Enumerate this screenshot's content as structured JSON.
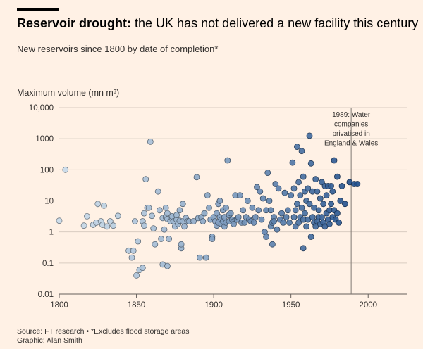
{
  "header": {
    "title_bold": "Reservoir drought:",
    "title_rest": " the UK has not delivered a new facility this century",
    "subtitle": "New reservoirs since 1800 by date of completion*"
  },
  "footer": {
    "source": "Source: FT research • *Excludes flood storage areas",
    "graphic": "Graphic: Alan Smith"
  },
  "colors": {
    "background": "#fff1e5",
    "point_light": "#c9dbea",
    "point_dark": "#1d4c8a",
    "grid": "#d9ccc1"
  },
  "chart_data": {
    "type": "scatter",
    "title": "Reservoir drought: the UK has not delivered a new facility this century",
    "subtitle": "New reservoirs since 1800 by date of completion*",
    "ylabel": "Maximum volume (mn m³)",
    "xlabel": "",
    "y_scale": "log",
    "xlim": [
      1800,
      2025
    ],
    "ylim": [
      0.01,
      10000
    ],
    "x_ticks": [
      1800,
      1850,
      1900,
      1950,
      2000
    ],
    "x_tick_labels": [
      "1800",
      "1850",
      "1900",
      "1950",
      "2000"
    ],
    "y_ticks": [
      0.01,
      0.1,
      1,
      10,
      100,
      1000,
      10000
    ],
    "y_tick_labels": [
      "0.01",
      "0.1",
      "1",
      "10",
      "100",
      "1000",
      "10,000"
    ],
    "grid": "horizontal",
    "annotation": {
      "x": 1989,
      "label_lines": [
        "1989: Water",
        "companies",
        "privatised in",
        "England & Wales"
      ]
    },
    "points": [
      [
        1804,
        100
      ],
      [
        1800,
        2.3
      ],
      [
        1816,
        1.6
      ],
      [
        1818,
        3.2
      ],
      [
        1822,
        1.7
      ],
      [
        1824,
        2
      ],
      [
        1825,
        8
      ],
      [
        1827,
        2.2
      ],
      [
        1828,
        1.7
      ],
      [
        1829,
        7
      ],
      [
        1831,
        1.5
      ],
      [
        1833,
        2.2
      ],
      [
        1835,
        1.6
      ],
      [
        1838,
        3.3
      ],
      [
        1845,
        0.25
      ],
      [
        1847,
        0.15
      ],
      [
        1848,
        0.25
      ],
      [
        1849,
        2.2
      ],
      [
        1850,
        0.04
      ],
      [
        1851,
        0.5
      ],
      [
        1852,
        0.06
      ],
      [
        1854,
        0.07
      ],
      [
        1854,
        2.2
      ],
      [
        1855,
        1.6
      ],
      [
        1855,
        4
      ],
      [
        1856,
        50
      ],
      [
        1857,
        6
      ],
      [
        1858,
        6
      ],
      [
        1859,
        800
      ],
      [
        1860,
        3.3
      ],
      [
        1861,
        1.3
      ],
      [
        1862,
        0.4
      ],
      [
        1864,
        20
      ],
      [
        1865,
        5
      ],
      [
        1866,
        0.6
      ],
      [
        1867,
        2.8
      ],
      [
        1867,
        0.09
      ],
      [
        1868,
        1.2
      ],
      [
        1869,
        6
      ],
      [
        1869,
        3
      ],
      [
        1870,
        2.6
      ],
      [
        1870,
        4
      ],
      [
        1870,
        0.08
      ],
      [
        1871,
        0.6
      ],
      [
        1872,
        2.2
      ],
      [
        1873,
        2.8
      ],
      [
        1873,
        3.2
      ],
      [
        1874,
        2.2
      ],
      [
        1875,
        1.5
      ],
      [
        1876,
        2.5
      ],
      [
        1876,
        3.5
      ],
      [
        1877,
        1.8
      ],
      [
        1878,
        2.3
      ],
      [
        1878,
        5
      ],
      [
        1879,
        0.3
      ],
      [
        1879,
        0.4
      ],
      [
        1880,
        8
      ],
      [
        1880,
        2.2
      ],
      [
        1881,
        1.5
      ],
      [
        1882,
        2.8
      ],
      [
        1883,
        2.2
      ],
      [
        1884,
        2.2
      ],
      [
        1887,
        2.2
      ],
      [
        1889,
        58
      ],
      [
        1890,
        2.8
      ],
      [
        1891,
        0.15
      ],
      [
        1892,
        3
      ],
      [
        1893,
        2.2
      ],
      [
        1894,
        4
      ],
      [
        1895,
        0.15
      ],
      [
        1896,
        15
      ],
      [
        1897,
        6
      ],
      [
        1898,
        2.5
      ],
      [
        1899,
        0.7
      ],
      [
        1899,
        0.6
      ],
      [
        1900,
        3
      ],
      [
        1901,
        2.2
      ],
      [
        1902,
        4
      ],
      [
        1902,
        1.6
      ],
      [
        1903,
        8
      ],
      [
        1903,
        2
      ],
      [
        1904,
        10
      ],
      [
        1904,
        3
      ],
      [
        1905,
        2.5
      ],
      [
        1905,
        1.8
      ],
      [
        1906,
        5
      ],
      [
        1906,
        2.2
      ],
      [
        1907,
        3
      ],
      [
        1907,
        1.5
      ],
      [
        1908,
        2
      ],
      [
        1908,
        6
      ],
      [
        1909,
        200
      ],
      [
        1910,
        2.2
      ],
      [
        1910,
        3.5
      ],
      [
        1911,
        4
      ],
      [
        1912,
        2.5
      ],
      [
        1913,
        2.2
      ],
      [
        1913,
        1.8
      ],
      [
        1914,
        15
      ],
      [
        1915,
        2.5
      ],
      [
        1916,
        3
      ],
      [
        1917,
        15
      ],
      [
        1918,
        2
      ],
      [
        1919,
        5
      ],
      [
        1920,
        2
      ],
      [
        1921,
        3
      ],
      [
        1922,
        10
      ],
      [
        1923,
        2.5
      ],
      [
        1924,
        2.2
      ],
      [
        1925,
        6
      ],
      [
        1926,
        2
      ],
      [
        1927,
        3
      ],
      [
        1928,
        28
      ],
      [
        1929,
        5
      ],
      [
        1930,
        20
      ],
      [
        1931,
        2.5
      ],
      [
        1932,
        12
      ],
      [
        1933,
        1
      ],
      [
        1934,
        0.7
      ],
      [
        1934,
        5
      ],
      [
        1935,
        80
      ],
      [
        1936,
        10
      ],
      [
        1937,
        5
      ],
      [
        1937,
        1.5
      ],
      [
        1938,
        0.4
      ],
      [
        1938,
        2
      ],
      [
        1939,
        3
      ],
      [
        1939,
        2.2
      ],
      [
        1940,
        35
      ],
      [
        1941,
        1.2
      ],
      [
        1942,
        25
      ],
      [
        1943,
        2.5
      ],
      [
        1944,
        4
      ],
      [
        1945,
        2
      ],
      [
        1946,
        18
      ],
      [
        1947,
        3
      ],
      [
        1948,
        5
      ],
      [
        1949,
        2
      ],
      [
        1950,
        15
      ],
      [
        1951,
        170
      ],
      [
        1952,
        3
      ],
      [
        1952,
        25
      ],
      [
        1953,
        5
      ],
      [
        1953,
        1.5
      ],
      [
        1954,
        550
      ],
      [
        1954,
        8
      ],
      [
        1955,
        40
      ],
      [
        1955,
        2
      ],
      [
        1956,
        15
      ],
      [
        1956,
        3
      ],
      [
        1957,
        400
      ],
      [
        1957,
        6
      ],
      [
        1958,
        60
      ],
      [
        1958,
        2.5
      ],
      [
        1958,
        0.3
      ],
      [
        1959,
        20
      ],
      [
        1959,
        4
      ],
      [
        1960,
        1.5
      ],
      [
        1960,
        10
      ],
      [
        1961,
        25
      ],
      [
        1961,
        2.5
      ],
      [
        1962,
        1250
      ],
      [
        1962,
        8
      ],
      [
        1963,
        160
      ],
      [
        1963,
        0.7
      ],
      [
        1964,
        20
      ],
      [
        1964,
        3
      ],
      [
        1965,
        6
      ],
      [
        1965,
        2
      ],
      [
        1966,
        50
      ],
      [
        1966,
        1.5
      ],
      [
        1967,
        20
      ],
      [
        1967,
        2.2
      ],
      [
        1968,
        5
      ],
      [
        1968,
        3
      ],
      [
        1969,
        12
      ],
      [
        1969,
        1.8
      ],
      [
        1970,
        40
      ],
      [
        1970,
        3
      ],
      [
        1971,
        8
      ],
      [
        1971,
        2
      ],
      [
        1972,
        30
      ],
      [
        1972,
        1.5
      ],
      [
        1973,
        15
      ],
      [
        1973,
        4
      ],
      [
        1974,
        30
      ],
      [
        1974,
        2.5
      ],
      [
        1975,
        5
      ],
      [
        1975,
        1.8
      ],
      [
        1976,
        30
      ],
      [
        1976,
        8
      ],
      [
        1977,
        20
      ],
      [
        1977,
        3
      ],
      [
        1978,
        200
      ],
      [
        1978,
        5
      ],
      [
        1979,
        2.5
      ],
      [
        1980,
        60
      ],
      [
        1980,
        4
      ],
      [
        1981,
        2
      ],
      [
        1982,
        10
      ],
      [
        1983,
        30
      ],
      [
        1985,
        8
      ],
      [
        1988,
        40
      ],
      [
        1991,
        35
      ],
      [
        1993,
        35
      ]
    ]
  }
}
